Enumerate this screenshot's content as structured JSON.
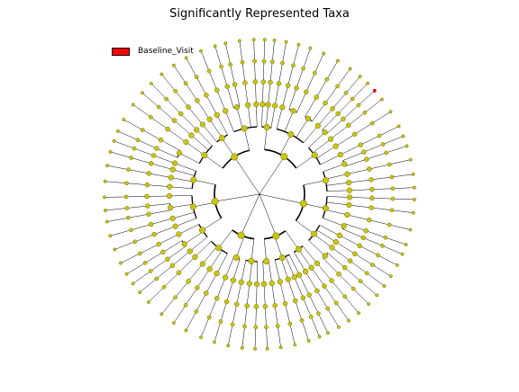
{
  "figure": {
    "title": "Significantly Represented Taxa"
  },
  "legend": {
    "items": [
      {
        "label": "Baseline_Visit",
        "color": "#ff0000"
      }
    ]
  },
  "colors": {
    "node_fill": "#c8c414",
    "node_stroke": "#6f6c00",
    "branch": "#000000",
    "highlight": "#ff0000"
  }
}
